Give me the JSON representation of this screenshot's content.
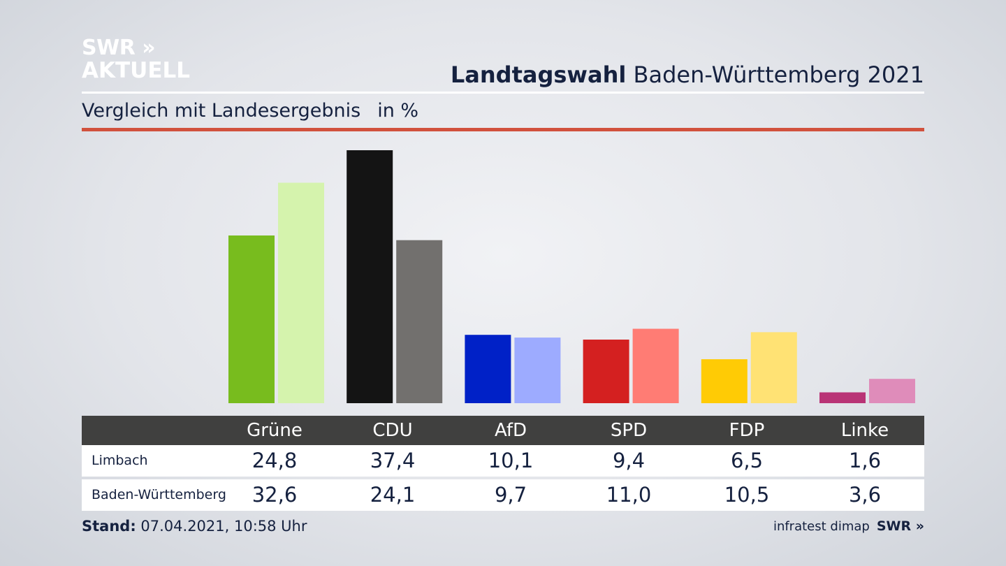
{
  "logo": {
    "line1": "SWR »",
    "line2": "AKTUELL"
  },
  "header": {
    "title_bold": "Landtagswahl",
    "title_rest": " Baden-Württemberg 2021"
  },
  "subheader": {
    "text": "Vergleich mit Landesergebnis",
    "unit": "in %"
  },
  "chart_data": {
    "type": "bar",
    "categories": [
      "Grüne",
      "CDU",
      "AfD",
      "SPD",
      "FDP",
      "Linke"
    ],
    "series": [
      {
        "name": "Limbach",
        "values": [
          24.8,
          37.4,
          10.1,
          9.4,
          6.5,
          1.6
        ],
        "colors": [
          "#78bc1e",
          "#141414",
          "#0021c7",
          "#d42020",
          "#ffcb05",
          "#b93476"
        ]
      },
      {
        "name": "Baden-Württemberg",
        "values": [
          32.6,
          24.1,
          9.7,
          11.0,
          10.5,
          3.6
        ],
        "colors": [
          "#d5f3ad",
          "#72706e",
          "#9dabff",
          "#ff7c74",
          "#ffe274",
          "#df8cba"
        ]
      }
    ],
    "ylim": [
      0,
      37.4
    ],
    "grid": false
  },
  "table": {
    "headers": [
      "Grüne",
      "CDU",
      "AfD",
      "SPD",
      "FDP",
      "Linke"
    ],
    "rows": [
      {
        "label": "Limbach",
        "values": [
          "24,8",
          "37,4",
          "10,1",
          "9,4",
          "6,5",
          "1,6"
        ]
      },
      {
        "label": "Baden-Württemberg",
        "values": [
          "32,6",
          "24,1",
          "9,7",
          "11,0",
          "10,5",
          "3,6"
        ]
      }
    ]
  },
  "footer": {
    "label": "Stand:",
    "text": " 07.04.2021, 10:58 Uhr"
  },
  "credit": {
    "text": "infratest dimap",
    "brand": "SWR »"
  }
}
